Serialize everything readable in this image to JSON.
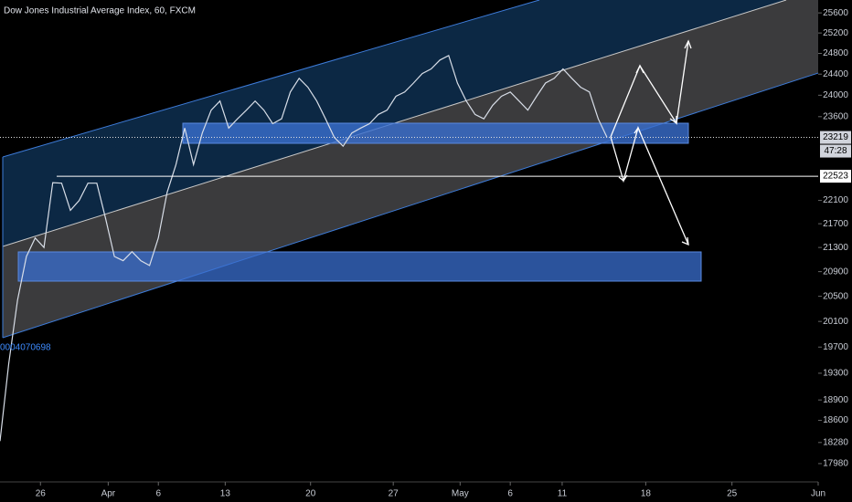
{
  "chart_data": {
    "type": "line",
    "title": "Dow Jones Industrial Average Index, 60, FXCM",
    "annotation": "0004070698",
    "color": "#d8dee8",
    "log_scale": true,
    "grid": false,
    "x": [
      0,
      1,
      2,
      3,
      4,
      5,
      6,
      7,
      8,
      9,
      10,
      11,
      12,
      13,
      14,
      15,
      16,
      17,
      18,
      19,
      20,
      21,
      22,
      23,
      24,
      25,
      26,
      27,
      28,
      29,
      30,
      31,
      32,
      33,
      34,
      35,
      36,
      37,
      38,
      39,
      40,
      41,
      42,
      43,
      44,
      45,
      46,
      47,
      48,
      49,
      50,
      51,
      52,
      53,
      54,
      55,
      56,
      57,
      58,
      59,
      60,
      61,
      62,
      63,
      64,
      65,
      66,
      67,
      68,
      69
    ],
    "values": [
      18300,
      19450,
      20440,
      21150,
      21460,
      21300,
      22410,
      22400,
      21930,
      22100,
      22400,
      22400,
      21790,
      21150,
      21080,
      21230,
      21080,
      21000,
      21460,
      22240,
      22730,
      23390,
      22730,
      23300,
      23720,
      23890,
      23390,
      23560,
      23720,
      23890,
      23720,
      23470,
      23560,
      24060,
      24320,
      24150,
      23890,
      23560,
      23220,
      23060,
      23300,
      23390,
      23470,
      23640,
      23720,
      23980,
      24060,
      24230,
      24410,
      24500,
      24670,
      24760,
      24230,
      23890,
      23640,
      23560,
      23810,
      23980,
      24060,
      23890,
      23720,
      23980,
      24230,
      24320,
      24500,
      24320,
      24150,
      24060,
      23560,
      23220
    ],
    "xlim": [
      0,
      93
    ],
    "xticks": [
      {
        "value": 4.6,
        "label": "26"
      },
      {
        "value": 12.3,
        "label": "Apr"
      },
      {
        "value": 18,
        "label": "6"
      },
      {
        "value": 25.6,
        "label": "13"
      },
      {
        "value": 35.3,
        "label": "20"
      },
      {
        "value": 44.7,
        "label": "27"
      },
      {
        "value": 52.3,
        "label": "May"
      },
      {
        "value": 58,
        "label": "6"
      },
      {
        "value": 63.9,
        "label": "11"
      },
      {
        "value": 73.4,
        "label": "18"
      },
      {
        "value": 83.2,
        "label": "25"
      },
      {
        "value": 93,
        "label": "Jun"
      }
    ],
    "ylim": [
      17800,
      25860
    ],
    "yticks": [
      25600,
      25200,
      24800,
      24400,
      24000,
      23600,
      22100,
      21700,
      21300,
      20900,
      20500,
      20100,
      19700,
      19300,
      18900,
      18600,
      18280,
      17980
    ],
    "last_price": 23219,
    "countdown": "47:28",
    "level": 22523
  }
}
